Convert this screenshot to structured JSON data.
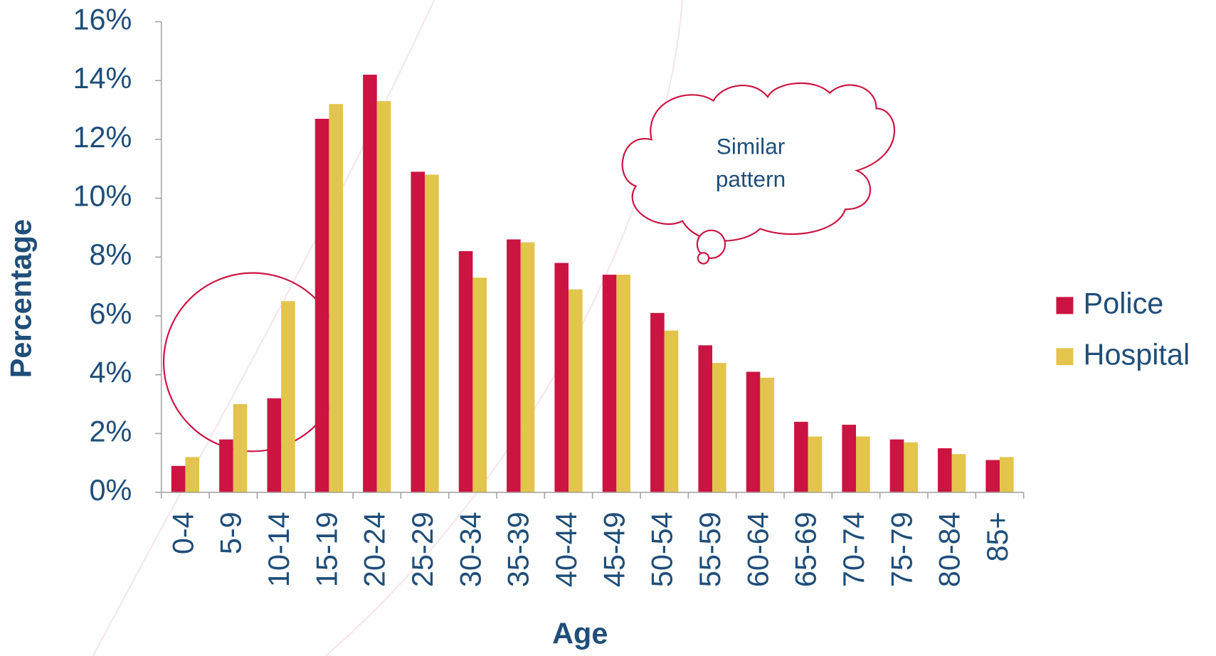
{
  "chart_data": {
    "type": "bar",
    "x_label": "Age",
    "y_label": "Percentage",
    "categories": [
      "0-4",
      "5-9",
      "10-14",
      "15-19",
      "20-24",
      "25-29",
      "30-34",
      "35-39",
      "40-44",
      "45-49",
      "50-54",
      "55-59",
      "60-64",
      "65-69",
      "70-74",
      "75-79",
      "80-84",
      "85+"
    ],
    "series": [
      {
        "name": "Police",
        "color": "#cc1442",
        "values": [
          0.9,
          1.8,
          3.2,
          12.7,
          14.2,
          10.9,
          8.2,
          8.6,
          7.8,
          7.4,
          6.1,
          5.0,
          4.1,
          2.4,
          2.3,
          1.8,
          1.5,
          1.1
        ]
      },
      {
        "name": "Hospital",
        "color": "#e3c44c",
        "values": [
          1.2,
          3.0,
          6.5,
          13.2,
          13.3,
          10.8,
          7.3,
          8.5,
          6.9,
          7.4,
          5.5,
          4.4,
          3.9,
          1.9,
          1.9,
          1.7,
          1.3,
          1.2
        ]
      }
    ],
    "ylim": [
      0,
      16
    ],
    "yticks": [
      {
        "value": 0,
        "label": "0%"
      },
      {
        "value": 2,
        "label": "2%"
      },
      {
        "value": 4,
        "label": "4%"
      },
      {
        "value": 6,
        "label": "6%"
      },
      {
        "value": 8,
        "label": "8%"
      },
      {
        "value": 10,
        "label": "10%"
      },
      {
        "value": 12,
        "label": "12%"
      },
      {
        "value": 14,
        "label": "14%"
      },
      {
        "value": 16,
        "label": "16%"
      }
    ],
    "legend": "right",
    "annotation": [
      "Similar",
      "pattern"
    ]
  }
}
